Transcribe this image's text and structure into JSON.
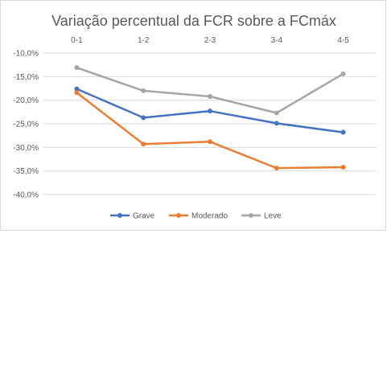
{
  "chart_data": {
    "type": "line",
    "title": "Variação percentual da FCR sobre a FCmáx",
    "categories": [
      "0-1",
      "1-2",
      "2-3",
      "3-4",
      "4-5"
    ],
    "ylim": [
      -40,
      -10
    ],
    "yticks": [
      -10,
      -15,
      -20,
      -25,
      -30,
      -35,
      -40
    ],
    "ytick_labels": [
      "-10,0%",
      "-15,0%",
      "-20,0%",
      "-25,0%",
      "-30,0%",
      "-35,0%",
      "-40,0%"
    ],
    "grid": true,
    "legend_position": "bottom",
    "series": [
      {
        "name": "Grave",
        "color": "#4472c4",
        "values": [
          -17.6,
          -23.7,
          -22.3,
          -24.9,
          -26.8
        ]
      },
      {
        "name": "Moderado",
        "color": "#ed7d31",
        "values": [
          -18.4,
          -29.3,
          -28.8,
          -34.4,
          -34.2
        ]
      },
      {
        "name": "Leve",
        "color": "#a5a5a5",
        "values": [
          -13.1,
          -18.0,
          -19.2,
          -22.7,
          -14.4
        ]
      }
    ]
  }
}
